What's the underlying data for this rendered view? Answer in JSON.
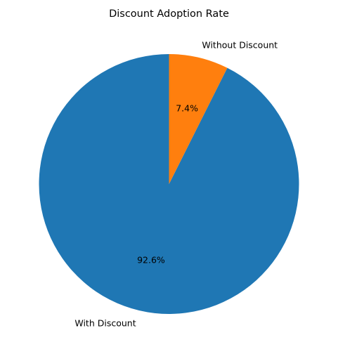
{
  "chart_data": {
    "type": "pie",
    "title": "Discount Adoption Rate",
    "start_angle_deg": 90,
    "direction": "counterclockwise",
    "slices": [
      {
        "label": "With Discount",
        "value": 92.6,
        "pct_label": "92.6%",
        "color": "#1f77b4"
      },
      {
        "label": "Without Discount",
        "value": 7.4,
        "pct_label": "7.4%",
        "color": "#ff7f0e"
      }
    ],
    "legend": "none"
  }
}
